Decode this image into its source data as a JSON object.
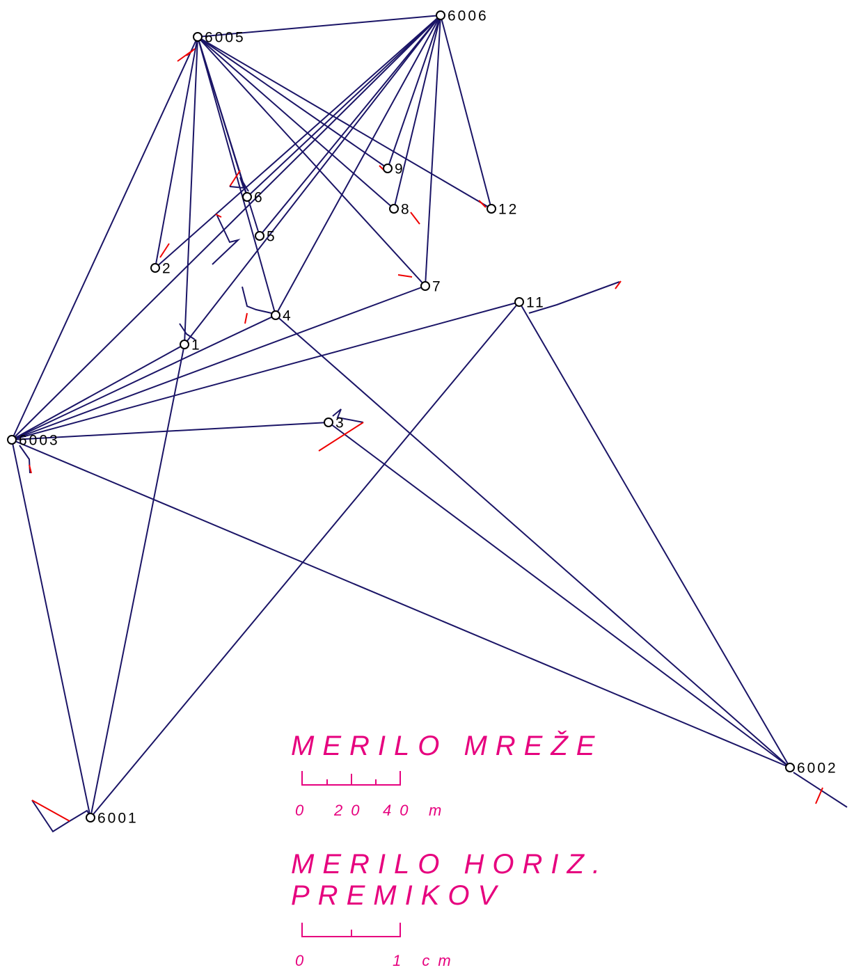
{
  "nodes": [
    {
      "label": "6006"
    },
    {
      "label": "6005"
    },
    {
      "label": "6003"
    },
    {
      "label": "6001"
    },
    {
      "label": "6002"
    },
    {
      "label": "9"
    },
    {
      "label": "8"
    },
    {
      "label": "12"
    },
    {
      "label": "6"
    },
    {
      "label": "5"
    },
    {
      "label": "2"
    },
    {
      "label": "7"
    },
    {
      "label": "11"
    },
    {
      "label": "4"
    },
    {
      "label": "1"
    },
    {
      "label": "3"
    }
  ],
  "legend": {
    "network_scale": {
      "title": "MERILO MREŽE",
      "ticks": [
        "0",
        "20",
        "40",
        "m"
      ]
    },
    "displacement_scale": {
      "title": [
        "MERILO HORIZ.",
        "PREMIKOV"
      ],
      "ticks": [
        "0",
        "1 cm"
      ]
    }
  }
}
